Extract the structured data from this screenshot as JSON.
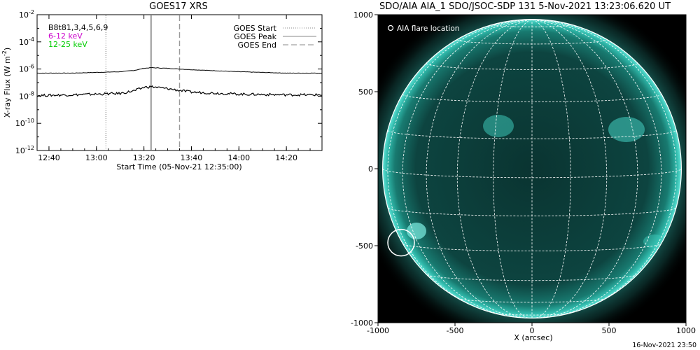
{
  "left_title": "GOES17 XRS",
  "right_title": "SDO/AIA AIA_1 SDO/JSOC-SDP 131  5-Nov-2021 13:23:06.620 UT",
  "footer_timestamp": "16-Nov-2021 23:50",
  "chart_data": [
    {
      "type": "line",
      "title": "GOES17 XRS",
      "xlabel": "Start Time (05-Nov-21 12:35:00)",
      "ylabel": "X-ray Flux (W m",
      "ylabel_exp": "-2",
      "ylabel_close": ")",
      "y_scale": "log",
      "ylim_exp": [
        -12,
        -2
      ],
      "x_ticks": [
        "12:40",
        "13:00",
        "13:20",
        "13:40",
        "14:00",
        "14:20"
      ],
      "y_ticks": [
        {
          "base": "10",
          "exp": "-2"
        },
        {
          "base": "10",
          "exp": "-4"
        },
        {
          "base": "10",
          "exp": "-6"
        },
        {
          "base": "10",
          "exp": "-8"
        },
        {
          "base": "10",
          "exp": "-10"
        },
        {
          "base": "10",
          "exp": "-12"
        }
      ],
      "channel_labels": [
        {
          "text": "B8t81,3,4,5,6,9",
          "color": "#000000"
        },
        {
          "text": "6-12 keV",
          "color": "#cc00cc"
        },
        {
          "text": "12-25 keV",
          "color": "#00cc00"
        }
      ],
      "legend": [
        {
          "label": "GOES Start",
          "style": "dotted"
        },
        {
          "label": "GOES Peak",
          "style": "solid"
        },
        {
          "label": "GOES End",
          "style": "dashed"
        }
      ],
      "legend_position": "top-right",
      "events": {
        "start": "13:04",
        "peak": "13:23",
        "end": "13:35"
      },
      "series": [
        {
          "channel": "long",
          "times": [
            "12:35",
            "12:50",
            "13:00",
            "13:10",
            "13:16",
            "13:20",
            "13:23",
            "13:30",
            "13:40",
            "14:00",
            "14:20",
            "14:35"
          ],
          "log_flux": [
            -6.3,
            -6.3,
            -6.25,
            -6.2,
            -6.1,
            -5.95,
            -5.9,
            -5.95,
            -6.05,
            -6.2,
            -6.3,
            -6.3
          ]
        },
        {
          "channel": "short",
          "times": [
            "12:35",
            "12:50",
            "13:00",
            "13:10",
            "13:16",
            "13:20",
            "13:23",
            "13:30",
            "13:40",
            "14:00",
            "14:20",
            "14:35"
          ],
          "log_flux": [
            -7.95,
            -7.9,
            -7.85,
            -7.8,
            -7.6,
            -7.35,
            -7.3,
            -7.45,
            -7.7,
            -7.85,
            -7.9,
            -7.9
          ]
        }
      ]
    },
    {
      "type": "image",
      "title": "SDO/AIA AIA_1 SDO/JSOC-SDP 131  5-Nov-2021 13:23:06.620 UT",
      "xlabel": "X (arcsec)",
      "x_ticks": [
        "-1000",
        "-500",
        "0",
        "500",
        "1000"
      ],
      "y_ticks": [
        "1000",
        "500",
        "0",
        "-500",
        "-1000"
      ],
      "xlim": [
        -1000,
        1000
      ],
      "ylim": [
        -1000,
        1000
      ],
      "legend": [
        {
          "label": "AIA flare location",
          "marker": "circle"
        }
      ],
      "legend_position": "top-left",
      "solar_radius_arcsec": 970,
      "flare_location_arcsec": {
        "x": -850,
        "y": -480
      },
      "colors": {
        "background": "#000000",
        "disk": "#0b3b37",
        "limb": "#3fd1c4",
        "grid": "#ffffff"
      }
    }
  ]
}
